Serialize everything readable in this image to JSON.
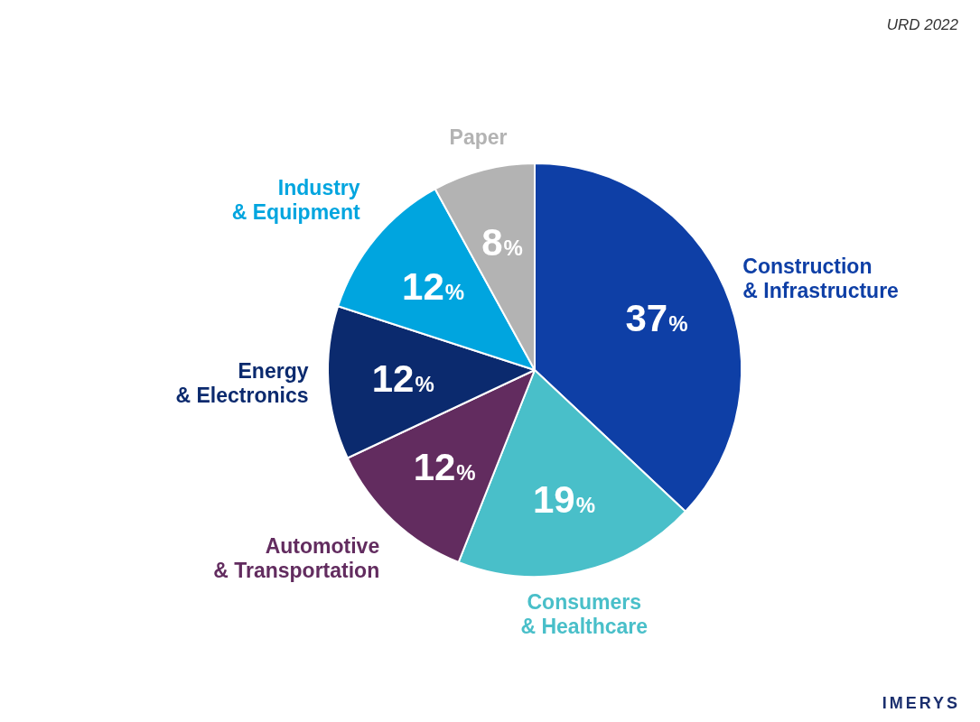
{
  "chart_data": {
    "type": "pie",
    "categories": [
      "Construction & Infrastructure",
      "Consumers & Healthcare",
      "Automotive & Transportation",
      "Energy & Electronics",
      "Industry & Equipment",
      "Paper"
    ],
    "values": [
      37,
      19,
      12,
      12,
      12,
      8
    ],
    "value_labels": [
      "37%",
      "19%",
      "12%",
      "12%",
      "12%",
      "8%"
    ],
    "colors": [
      "#0e3fa6",
      "#49bfc9",
      "#622c5f",
      "#0b2a6e",
      "#00a5df",
      "#b3b3b3"
    ],
    "data_labels": true,
    "annotations": [
      "URD 2022",
      "IMERYS"
    ]
  }
}
